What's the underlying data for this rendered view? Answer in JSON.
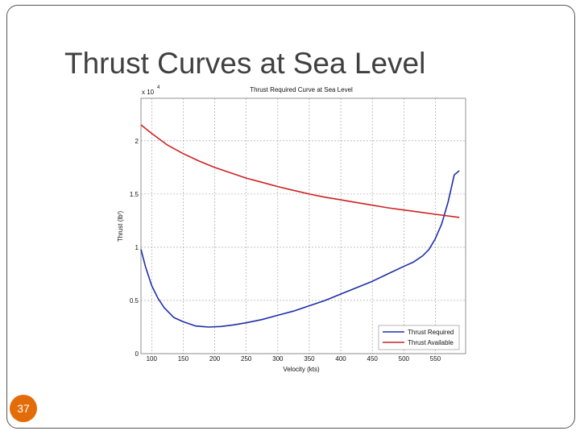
{
  "slide": {
    "title": "Thrust Curves at Sea Level",
    "page_number": "37"
  },
  "colors": {
    "required": "#1f2fa8",
    "available": "#cc2222",
    "badge": "#e36c09"
  },
  "chart_data": {
    "type": "line",
    "title": "Thrust Required Curve at Sea Level",
    "xlabel": "Velocity (kts)",
    "ylabel": "Thrust (lbᶠ)",
    "y_multiplier": "x 10",
    "y_multiplier_exp": "4",
    "xlim": [
      83,
      598
    ],
    "ylim": [
      0,
      2.4
    ],
    "x_ticks": [
      100,
      150,
      200,
      250,
      300,
      350,
      400,
      450,
      500,
      550
    ],
    "y_ticks": [
      0,
      0.5,
      1,
      1.5,
      2
    ],
    "y_tick_labels": [
      "0",
      "0.5",
      "1",
      "1.5",
      "2"
    ],
    "grid": true,
    "legend": "bottom-right",
    "series": [
      {
        "name": "Thrust Required",
        "color": "#1f2fa8",
        "points": [
          [
            83,
            0.98
          ],
          [
            90,
            0.82
          ],
          [
            100,
            0.64
          ],
          [
            110,
            0.52
          ],
          [
            120,
            0.43
          ],
          [
            135,
            0.34
          ],
          [
            150,
            0.3
          ],
          [
            170,
            0.26
          ],
          [
            190,
            0.25
          ],
          [
            210,
            0.255
          ],
          [
            230,
            0.27
          ],
          [
            250,
            0.29
          ],
          [
            275,
            0.32
          ],
          [
            300,
            0.36
          ],
          [
            325,
            0.4
          ],
          [
            350,
            0.45
          ],
          [
            375,
            0.5
          ],
          [
            400,
            0.56
          ],
          [
            425,
            0.62
          ],
          [
            450,
            0.68
          ],
          [
            475,
            0.75
          ],
          [
            500,
            0.82
          ],
          [
            515,
            0.86
          ],
          [
            530,
            0.92
          ],
          [
            540,
            0.98
          ],
          [
            550,
            1.08
          ],
          [
            560,
            1.22
          ],
          [
            570,
            1.42
          ],
          [
            580,
            1.68
          ],
          [
            588,
            1.72
          ]
        ]
      },
      {
        "name": "Thrust Available",
        "color": "#cc2222",
        "points": [
          [
            83,
            2.15
          ],
          [
            100,
            2.07
          ],
          [
            125,
            1.96
          ],
          [
            150,
            1.88
          ],
          [
            175,
            1.81
          ],
          [
            200,
            1.75
          ],
          [
            225,
            1.7
          ],
          [
            250,
            1.65
          ],
          [
            275,
            1.61
          ],
          [
            300,
            1.57
          ],
          [
            325,
            1.535
          ],
          [
            350,
            1.5
          ],
          [
            375,
            1.47
          ],
          [
            400,
            1.445
          ],
          [
            425,
            1.42
          ],
          [
            450,
            1.395
          ],
          [
            475,
            1.37
          ],
          [
            500,
            1.35
          ],
          [
            525,
            1.33
          ],
          [
            550,
            1.31
          ],
          [
            588,
            1.28
          ]
        ]
      }
    ]
  }
}
